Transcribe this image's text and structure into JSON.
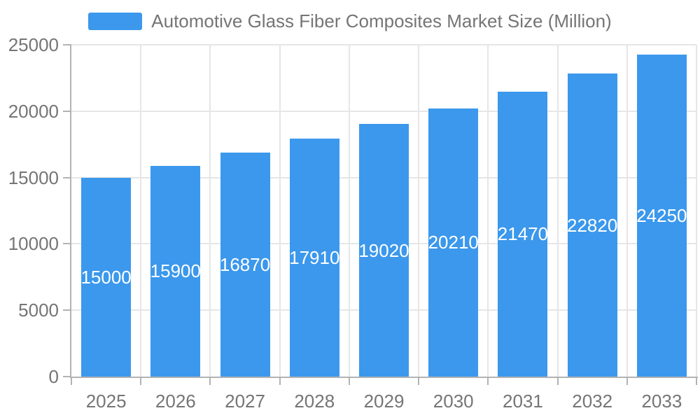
{
  "legend": {
    "series_label": "Automotive Glass Fiber Composites Market Size (Million)"
  },
  "chart_data": {
    "type": "bar",
    "title": "Automotive Glass Fiber Composites Market Size (Million)",
    "categories": [
      "2025",
      "2026",
      "2027",
      "2028",
      "2029",
      "2030",
      "2031",
      "2032",
      "2033"
    ],
    "values": [
      15000,
      15900,
      16870,
      17910,
      19020,
      20210,
      21470,
      22820,
      24250
    ],
    "xlabel": "",
    "ylabel": "",
    "ylim": [
      0,
      25000
    ],
    "yticks": [
      0,
      5000,
      10000,
      15000,
      20000,
      25000
    ],
    "grid": true,
    "legend_position": "top",
    "colors": {
      "bar": "#3B98EC",
      "grid": "#E6E6E6",
      "axis": "#B3B3B3",
      "tick_text": "#757575",
      "value_label": "#FFFFFF",
      "background": "#FFFFFF"
    }
  }
}
